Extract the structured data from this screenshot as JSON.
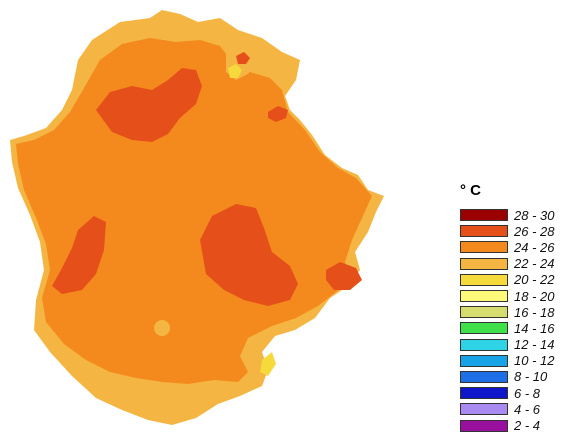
{
  "map": {
    "zones": [
      {
        "name": "zone-border-22-24",
        "range": "22 - 24",
        "color": "#F4B542"
      },
      {
        "name": "zone-main-24-26",
        "range": "24 - 26",
        "color": "#F48A1D"
      },
      {
        "name": "zone-hot-26-28",
        "range": "26 - 28",
        "color": "#E5501A"
      },
      {
        "name": "zone-cool-20-22",
        "range": "20 - 22",
        "color": "#F6D93A"
      }
    ]
  },
  "legend": {
    "title": "° C",
    "items": [
      {
        "label": "28 - 30",
        "color": "#9B0000"
      },
      {
        "label": "26 - 28",
        "color": "#E5501A"
      },
      {
        "label": "24 - 26",
        "color": "#F48A1D"
      },
      {
        "label": "22 - 24",
        "color": "#F4B542"
      },
      {
        "label": "20 - 22",
        "color": "#F6D93A"
      },
      {
        "label": "18 - 20",
        "color": "#FFF97A"
      },
      {
        "label": "16 - 18",
        "color": "#D5DD6E"
      },
      {
        "label": "14 - 16",
        "color": "#3FE04A"
      },
      {
        "label": "12 - 14",
        "color": "#2FD3E6"
      },
      {
        "label": "10 - 12",
        "color": "#18A3E6"
      },
      {
        "label": "8 - 10",
        "color": "#1E6FE6"
      },
      {
        "label": "6 - 8",
        "color": "#0F15C9"
      },
      {
        "label": "4 - 6",
        "color": "#A88AF0"
      },
      {
        "label": "2 - 4",
        "color": "#9A109E"
      }
    ]
  }
}
